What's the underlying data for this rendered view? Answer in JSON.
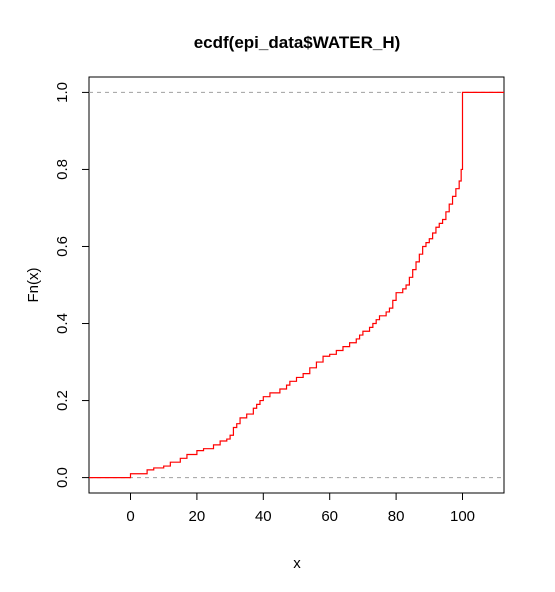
{
  "chart_data": {
    "type": "line",
    "title": "ecdf(epi_data$WATER_H)",
    "xlabel": "x",
    "ylabel": "Fn(x)",
    "xlim": [
      -12.5,
      112.5
    ],
    "ylim": [
      -0.04,
      1.04
    ],
    "x_ticks": [
      "0",
      "20",
      "40",
      "60",
      "80",
      "100"
    ],
    "y_ticks": [
      "0.0",
      "0.2",
      "0.4",
      "0.6",
      "0.8",
      "1.0"
    ],
    "reference_lines": [
      0,
      1
    ],
    "grid": false,
    "series": [
      {
        "color": "#ff0000",
        "x": [
          -12.5,
          0,
          5,
          7,
          10,
          12,
          15,
          17,
          20,
          22,
          25,
          27,
          29,
          30,
          31,
          32,
          33,
          35,
          37,
          38,
          39,
          40,
          42,
          45,
          47,
          48,
          50,
          52,
          54,
          56,
          58,
          60,
          62,
          64,
          66,
          68,
          69,
          70,
          72,
          73,
          74,
          75,
          77,
          78,
          79,
          80,
          82,
          83,
          84,
          85,
          86,
          87,
          88,
          89,
          90,
          91,
          92,
          93,
          94,
          95,
          96,
          97,
          98,
          99,
          99.6,
          100,
          112.5
        ],
        "y": [
          0.0,
          0.01,
          0.02,
          0.025,
          0.03,
          0.04,
          0.05,
          0.06,
          0.07,
          0.075,
          0.085,
          0.095,
          0.1,
          0.11,
          0.13,
          0.14,
          0.155,
          0.165,
          0.18,
          0.19,
          0.2,
          0.21,
          0.22,
          0.23,
          0.24,
          0.25,
          0.26,
          0.27,
          0.285,
          0.3,
          0.315,
          0.32,
          0.33,
          0.34,
          0.35,
          0.36,
          0.37,
          0.38,
          0.39,
          0.4,
          0.41,
          0.42,
          0.43,
          0.44,
          0.46,
          0.48,
          0.49,
          0.5,
          0.52,
          0.54,
          0.56,
          0.58,
          0.6,
          0.61,
          0.62,
          0.635,
          0.65,
          0.66,
          0.67,
          0.69,
          0.71,
          0.73,
          0.75,
          0.77,
          0.8,
          1.0,
          1.0
        ]
      }
    ]
  }
}
